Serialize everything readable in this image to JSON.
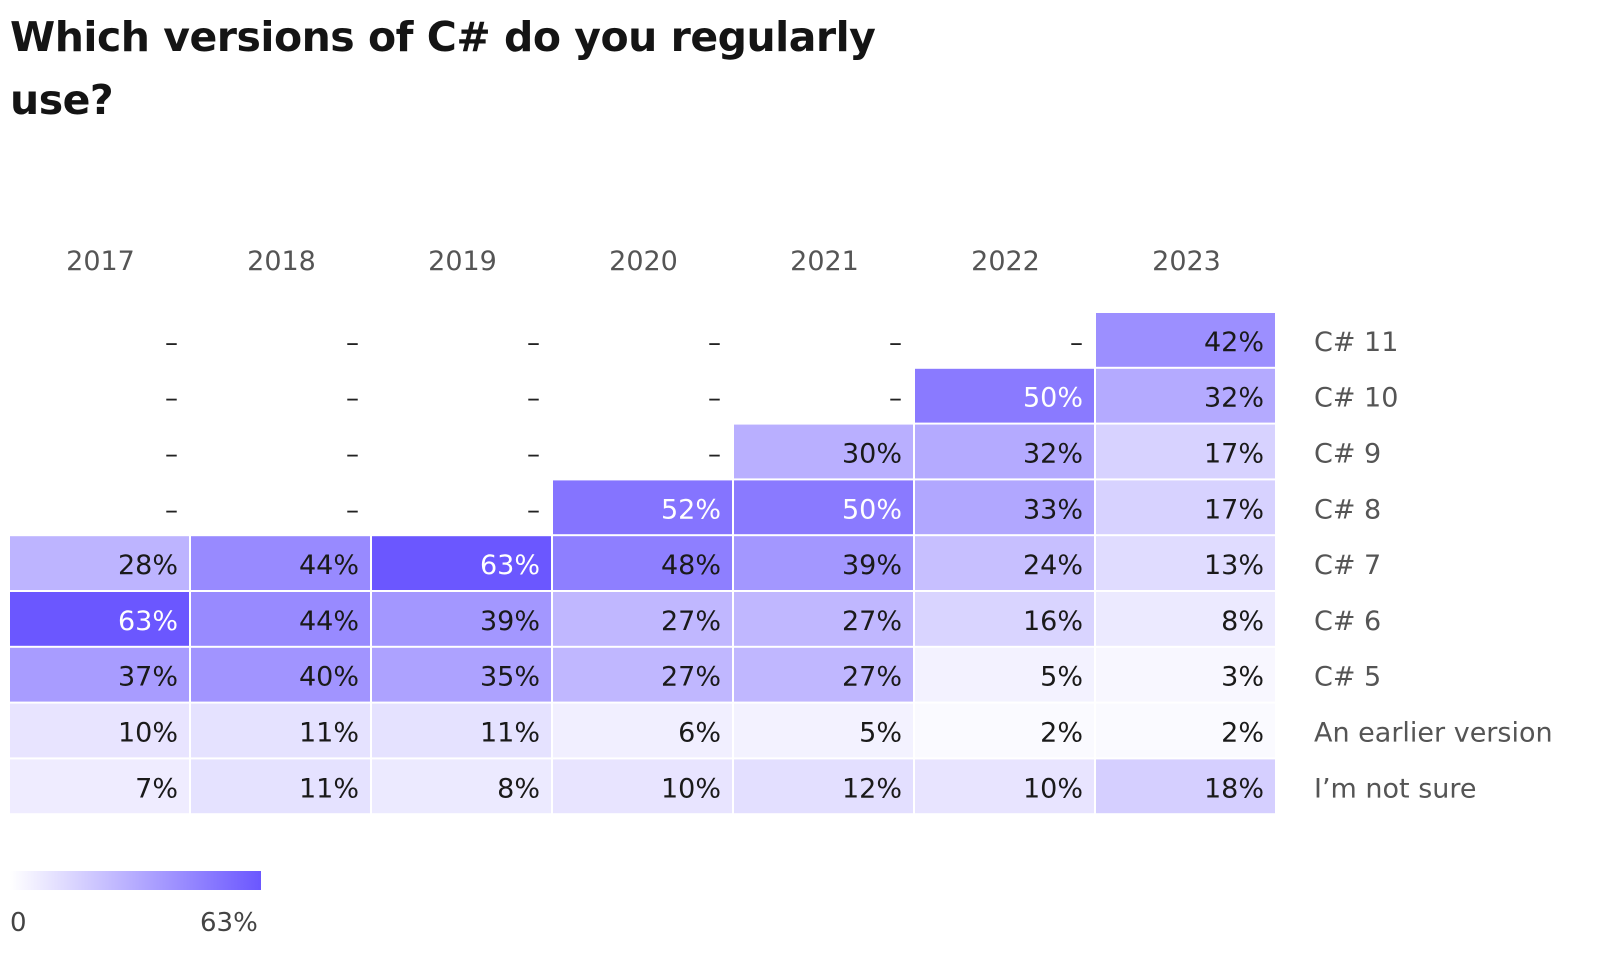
{
  "title": "Which versions of C# do you regularly use?",
  "chart_data": {
    "type": "heatmap",
    "title": "Which versions of C# do you regularly use?",
    "x": [
      "2017",
      "2018",
      "2019",
      "2020",
      "2021",
      "2022",
      "2023"
    ],
    "y": [
      "C# 11",
      "C# 10",
      "C# 9",
      "C# 8",
      "C# 7",
      "C# 6",
      "C# 5",
      "An earlier version",
      "I’m not sure"
    ],
    "values": [
      [
        null,
        null,
        null,
        null,
        null,
        null,
        42
      ],
      [
        null,
        null,
        null,
        null,
        null,
        50,
        32
      ],
      [
        null,
        null,
        null,
        null,
        30,
        32,
        17
      ],
      [
        null,
        null,
        null,
        52,
        50,
        33,
        17
      ],
      [
        28,
        44,
        63,
        48,
        39,
        24,
        13
      ],
      [
        63,
        44,
        39,
        27,
        27,
        16,
        8
      ],
      [
        37,
        40,
        35,
        27,
        27,
        5,
        3
      ],
      [
        10,
        11,
        11,
        6,
        5,
        2,
        2
      ],
      [
        7,
        11,
        8,
        10,
        12,
        10,
        18
      ]
    ],
    "unit": "%",
    "missing_label": "–",
    "color_scale": {
      "min": 0,
      "max": 63,
      "min_label": "0",
      "max_label": "63%",
      "min_color": "#ffffff",
      "max_color": "#6b57ff"
    },
    "legend": "bottom-left"
  }
}
